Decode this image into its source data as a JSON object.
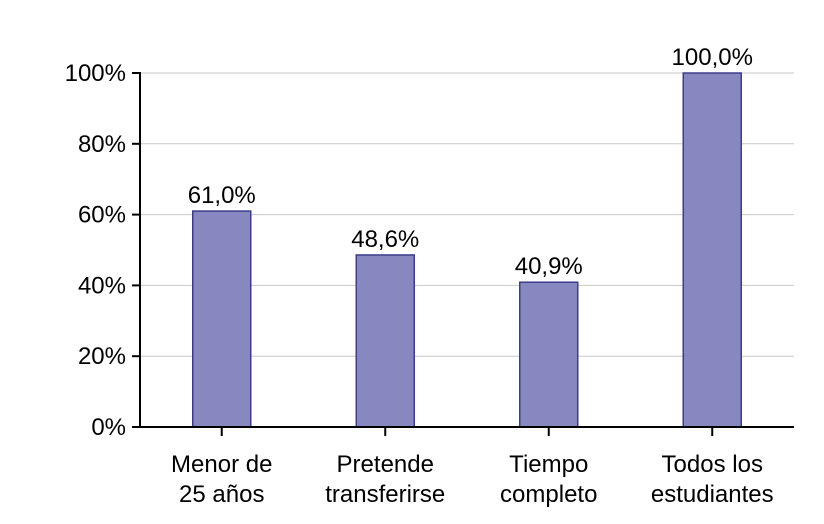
{
  "chart_data": {
    "type": "bar",
    "categories": [
      [
        "Menor de",
        "25 años"
      ],
      [
        "Pretende",
        "transferirse"
      ],
      [
        "Tiempo",
        "completo"
      ],
      [
        "Todos los",
        "estudiantes"
      ]
    ],
    "values": [
      61.0,
      48.6,
      40.9,
      100.0
    ],
    "data_labels": [
      "61,0%",
      "48,6%",
      "40,9%",
      "100,0%"
    ],
    "ylim": [
      0,
      100
    ],
    "yticks": [
      0,
      20,
      40,
      60,
      80,
      100
    ],
    "ytick_labels": [
      "0%",
      "20%",
      "40%",
      "60%",
      "80%",
      "100%"
    ],
    "grid": true,
    "bar_color": "#8888c0",
    "bar_edge_color": "#3c3c8c",
    "title": "",
    "xlabel": "",
    "ylabel": ""
  }
}
